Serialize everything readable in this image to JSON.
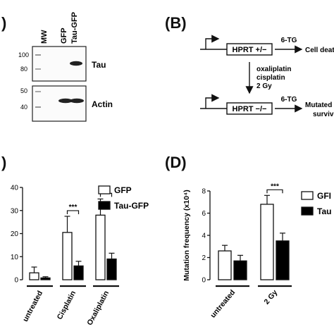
{
  "panels": {
    "a": {
      "letter": ")"
    },
    "b": {
      "letter": "(B)"
    },
    "c": {
      "letter": ")"
    },
    "d": {
      "letter": "(D)"
    }
  },
  "blot": {
    "lanes": [
      "MW",
      "GFP",
      "Tau-GFP"
    ],
    "tau": {
      "label": "Tau",
      "markers": [
        "100",
        "80"
      ]
    },
    "actin": {
      "label": "Actin",
      "markers": [
        "50",
        "40"
      ]
    }
  },
  "scheme": {
    "top_gene": "HPRT +/−",
    "top_drug": "6-TG",
    "top_outcome": "Cell deat",
    "treatment": [
      "oxaliplatin",
      "cisplatin",
      "2 Gy"
    ],
    "bottom_gene": "HPRT −/−",
    "bottom_drug": "6-TG",
    "bottom_outcome_1": "Mutated",
    "bottom_outcome_2": "survive"
  },
  "colors": {
    "gfp": "#ffffff",
    "tau": "#000000",
    "axis": "#111111"
  },
  "chart_data": [
    {
      "type": "bar",
      "panel": "C",
      "categories": [
        "untreated",
        "Cisplatin",
        "Oxaliplatin"
      ],
      "series": [
        {
          "name": "GFP",
          "values": [
            3,
            20.5,
            28
          ],
          "errors": [
            2.5,
            7,
            7
          ]
        },
        {
          "name": "Tau-GFP",
          "values": [
            0.8,
            6,
            9
          ],
          "errors": [
            0.5,
            2,
            2.5
          ]
        }
      ],
      "ylim": [
        0,
        40
      ],
      "yticks": [
        "0",
        "10",
        "20",
        "30",
        "40"
      ],
      "significance": [
        "***",
        "***"
      ],
      "legend": "top-right"
    },
    {
      "type": "bar",
      "panel": "D",
      "categories": [
        "untreated",
        "2 Gy"
      ],
      "series": [
        {
          "name": "GFI",
          "values": [
            2.6,
            6.8
          ],
          "errors": [
            0.5,
            0.8
          ]
        },
        {
          "name": "Tau",
          "values": [
            1.7,
            3.5
          ],
          "errors": [
            0.5,
            0.7
          ]
        }
      ],
      "ylim": [
        0,
        8
      ],
      "yticks": [
        "0",
        "2",
        "4",
        "6",
        "8"
      ],
      "ylabel": "Mutation frequency (x10⁴)",
      "significance": [
        "***"
      ],
      "legend": "top-right"
    }
  ]
}
